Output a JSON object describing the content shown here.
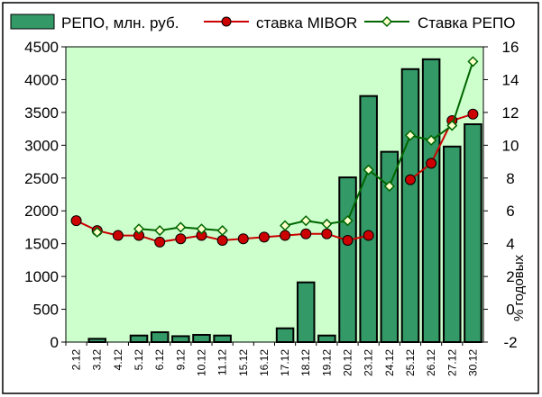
{
  "chart_data": {
    "type": "bar",
    "categories": [
      "2.12",
      "3.12",
      "4.12",
      "5.12",
      "6.12",
      "9.12",
      "10.12",
      "11.12",
      "15.12",
      "16.12",
      "17.12",
      "18.12",
      "19.12",
      "20.12",
      "23.12",
      "24.12",
      "25.12",
      "26.12",
      "27.12",
      "30.12"
    ],
    "series": [
      {
        "name": "РЕПО, млн. руб.",
        "type": "bar",
        "axis": "left",
        "color": "#339966",
        "values": [
          0,
          50,
          0,
          100,
          150,
          90,
          110,
          100,
          0,
          0,
          210,
          910,
          100,
          2510,
          3750,
          2900,
          4160,
          4310,
          2980,
          3320
        ]
      },
      {
        "name": "ставка MIBOR",
        "type": "line",
        "axis": "right",
        "color": "#cc0000",
        "marker": "circle",
        "values": [
          5.4,
          4.8,
          4.5,
          4.5,
          4.1,
          4.3,
          4.5,
          4.2,
          4.3,
          4.4,
          4.5,
          4.6,
          4.6,
          4.2,
          4.5,
          null,
          7.9,
          8.9,
          11.5,
          11.9
        ]
      },
      {
        "name": "Ставка РЕПО",
        "type": "line",
        "axis": "right",
        "color": "#006600",
        "marker": "diamond",
        "values": [
          null,
          4.7,
          null,
          4.9,
          4.8,
          5.0,
          4.9,
          4.8,
          null,
          null,
          5.1,
          5.4,
          5.2,
          5.4,
          8.5,
          7.5,
          10.6,
          10.3,
          11.2,
          15.1
        ]
      }
    ],
    "left_axis": {
      "ylim": [
        0,
        4500
      ],
      "ticks": [
        "0",
        "500",
        "1000",
        "1500",
        "2000",
        "2500",
        "3000",
        "3500",
        "4000",
        "4500"
      ]
    },
    "right_axis": {
      "ylim": [
        -2,
        16
      ],
      "ticks": [
        "-2",
        "0",
        "2",
        "4",
        "6",
        "8",
        "10",
        "12",
        "14",
        "16"
      ],
      "label": "% годовых"
    },
    "grid": false,
    "legend": "top",
    "plot_bg": "#ccffcc"
  }
}
